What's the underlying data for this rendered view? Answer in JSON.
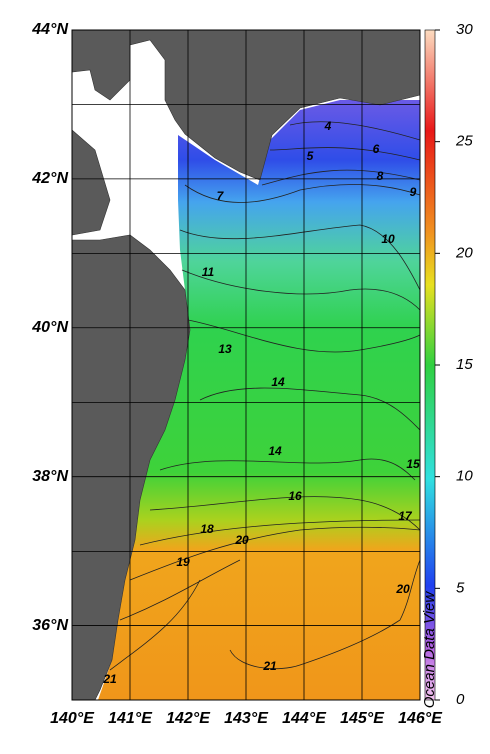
{
  "map": {
    "lat_range": [
      35,
      44
    ],
    "lon_range": [
      140,
      146
    ],
    "lat_ticks": [
      {
        "value": 44,
        "label": "44°N"
      },
      {
        "value": 42,
        "label": "42°N"
      },
      {
        "value": 40,
        "label": "40°N"
      },
      {
        "value": 38,
        "label": "38°N"
      },
      {
        "value": 36,
        "label": "36°N"
      }
    ],
    "lon_ticks": [
      {
        "value": 140,
        "label": "140°E"
      },
      {
        "value": 141,
        "label": "141°E"
      },
      {
        "value": 142,
        "label": "142°E"
      },
      {
        "value": 143,
        "label": "143°E"
      },
      {
        "value": 144,
        "label": "144°E"
      },
      {
        "value": 145,
        "label": "145°E"
      },
      {
        "value": 146,
        "label": "146°E"
      }
    ],
    "colorbar": {
      "range": [
        0,
        30
      ],
      "ticks": [
        0,
        5,
        10,
        15,
        20,
        25,
        30
      ]
    },
    "contour_labels": [
      4,
      5,
      6,
      8,
      9,
      7,
      10,
      11,
      13,
      14,
      14,
      15,
      16,
      17,
      18,
      20,
      19,
      20,
      21,
      21
    ],
    "credit": "Ocean Data View"
  }
}
